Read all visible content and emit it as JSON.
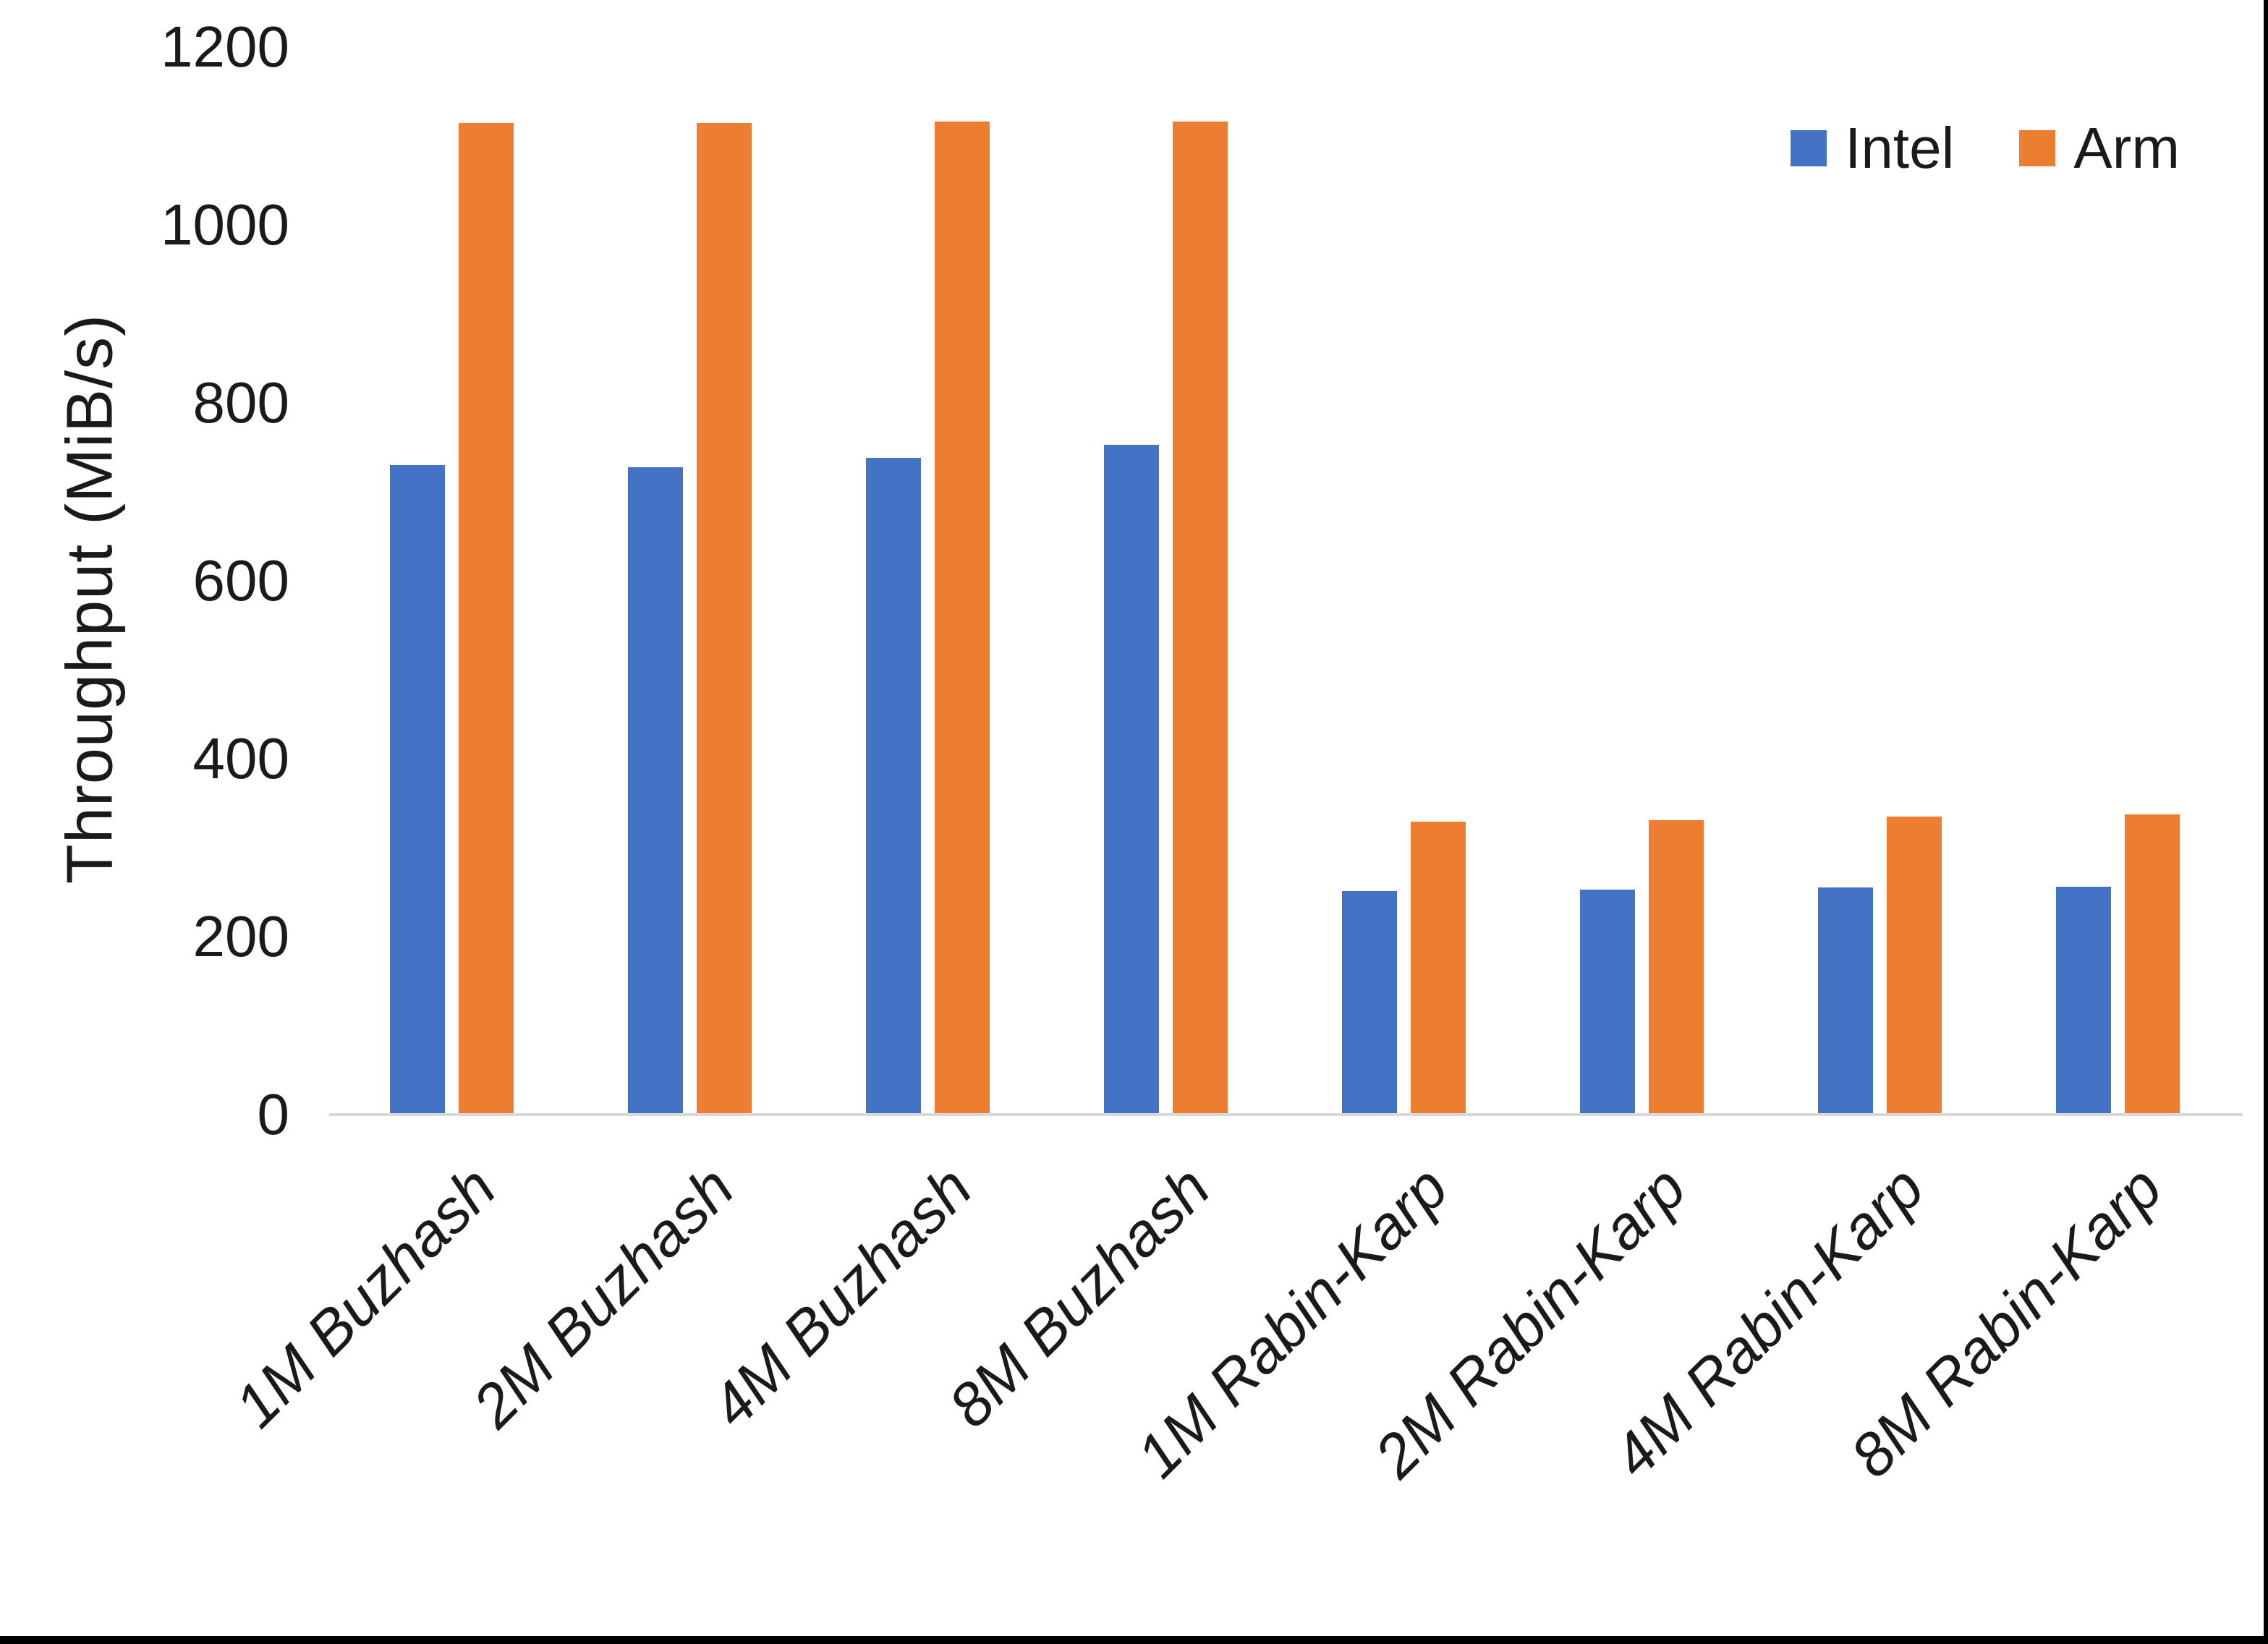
{
  "chart_data": {
    "type": "bar",
    "title": "",
    "ylabel": "Throughput (MiB/s)",
    "xlabel": "",
    "categories": [
      "1M Buzhash",
      "2M Buzhash",
      "4M Buzhash",
      "8M Buzhash",
      "1M Rabin-Karp",
      "2M Rabin-Karp",
      "4M Rabin-Karp",
      "8M Rabin-Karp"
    ],
    "series": [
      {
        "name": "Intel",
        "color": "#4472C4",
        "values": [
          730,
          728,
          738,
          753,
          251,
          253,
          255,
          256
        ]
      },
      {
        "name": "Arm",
        "color": "#ED7D31",
        "values": [
          1115,
          1115,
          1116,
          1116,
          329,
          331,
          335,
          337
        ]
      }
    ],
    "ylim": [
      0,
      1200
    ],
    "yticks": [
      0,
      200,
      400,
      600,
      800,
      1000,
      1200
    ],
    "grid": false,
    "legend_position": "top-right",
    "colors": {
      "axis_line": "#D9D9D9",
      "text": "#1a1a1a",
      "background": "#ffffff",
      "edge_border": "#000000"
    }
  }
}
